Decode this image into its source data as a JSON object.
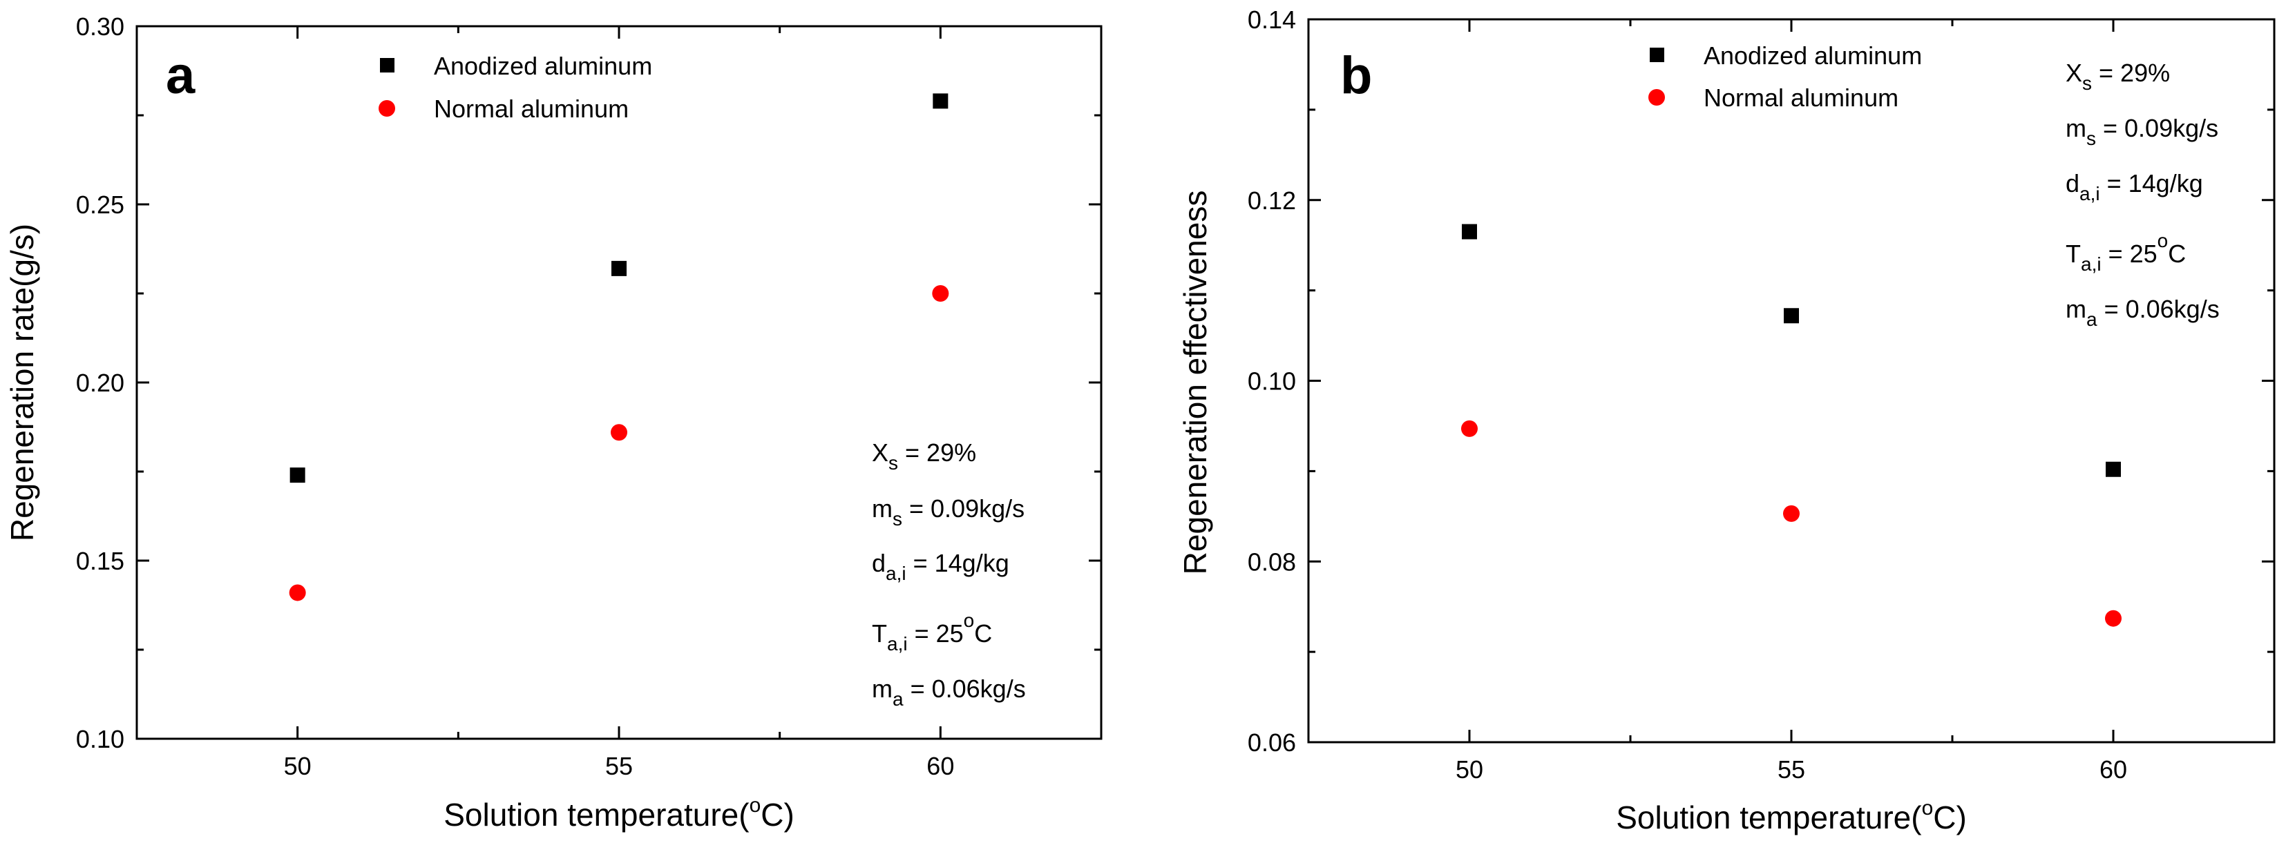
{
  "chart_data": [
    {
      "type": "scatter",
      "panel_label": "a",
      "xlabel": "Solution temperature(",
      "xlabel_sup": "o",
      "xlabel_end": "C)",
      "ylabel": "Regeneration rate(g/s)",
      "xlim": [
        47.5,
        62.5
      ],
      "ylim": [
        0.1,
        0.3
      ],
      "x_ticks": [
        50,
        55,
        60
      ],
      "y_ticks": [
        "0.10",
        "0.15",
        "0.20",
        "0.25",
        "0.30"
      ],
      "legend": {
        "position": "top-center"
      },
      "series": [
        {
          "name": "Anodized aluminum",
          "marker": "square",
          "color": "#000000",
          "x": [
            50,
            55,
            60
          ],
          "y": [
            0.174,
            0.232,
            0.279
          ]
        },
        {
          "name": "Normal aluminum",
          "marker": "circle",
          "color": "#ff0000",
          "x": [
            50,
            55,
            60
          ],
          "y": [
            0.141,
            0.186,
            0.225
          ]
        }
      ],
      "annotations": {
        "position": "bottom-right",
        "lines": [
          {
            "main": "X",
            "sub": "s",
            "sup": "",
            "rest": " = 29%"
          },
          {
            "main": "m",
            "sub": "s",
            "sup": "",
            "rest": "  = 0.09kg/s"
          },
          {
            "main": "d",
            "sub": "a,i",
            "sup": "",
            "rest": " = 14g/kg"
          },
          {
            "main": "T",
            "sub": "a,i",
            "sup": "o",
            "rest": " = 25",
            "tail": "C"
          },
          {
            "main": "m",
            "sub": "a",
            "sup": "",
            "rest": "  = 0.06kg/s"
          }
        ]
      }
    },
    {
      "type": "scatter",
      "panel_label": "b",
      "xlabel": "Solution temperature(",
      "xlabel_sup": "o",
      "xlabel_end": "C)",
      "ylabel": "Regeneration effectiveness",
      "xlim": [
        47.5,
        62.5
      ],
      "ylim": [
        0.06,
        0.14
      ],
      "x_ticks": [
        50,
        55,
        60
      ],
      "y_ticks": [
        "0.06",
        "0.08",
        "0.10",
        "0.12",
        "0.14"
      ],
      "legend": {
        "position": "top-center"
      },
      "series": [
        {
          "name": "Anodized aluminum",
          "marker": "square",
          "color": "#000000",
          "x": [
            50,
            55,
            60
          ],
          "y": [
            0.1165,
            0.1072,
            0.0902
          ]
        },
        {
          "name": "Normal aluminum",
          "marker": "circle",
          "color": "#ff0000",
          "x": [
            50,
            55,
            60
          ],
          "y": [
            0.0947,
            0.0853,
            0.0737
          ]
        }
      ],
      "annotations": {
        "position": "top-right",
        "lines": [
          {
            "main": "X",
            "sub": "s",
            "sup": "",
            "rest": " = 29%"
          },
          {
            "main": "m",
            "sub": "s",
            "sup": "",
            "rest": "  = 0.09kg/s"
          },
          {
            "main": "d",
            "sub": "a,i",
            "sup": "",
            "rest": " = 14g/kg"
          },
          {
            "main": "T",
            "sub": "a,i",
            "sup": "o",
            "rest": " = 25",
            "tail": "C"
          },
          {
            "main": "m",
            "sub": "a",
            "sup": "",
            "rest": "  = 0.06kg/s"
          }
        ]
      }
    }
  ]
}
